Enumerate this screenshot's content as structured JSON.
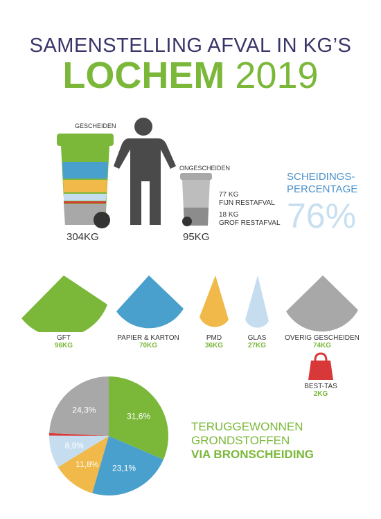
{
  "title": {
    "line1": "SAMENSTELLING AFVAL IN KG’S",
    "place": "LOCHEM",
    "year": "2019"
  },
  "bins": {
    "separated_label": "GESCHEIDEN",
    "separated_kg": "304KG",
    "unseparated_label": "ONGESCHEIDEN",
    "unseparated_kg": "95KG",
    "fine_kg": "77 KG",
    "fine_label": "FIJN RESTAFVAL",
    "coarse_kg": "18 KG",
    "coarse_label": "GROF RESTAFVAL"
  },
  "rate": {
    "label_line1": "SCHEIDINGS-",
    "label_line2": "PERCENTAGE",
    "value": "76%"
  },
  "categories": [
    {
      "name": "GFT",
      "kg": "96KG",
      "color": "#7bb83a"
    },
    {
      "name": "PAPIER & KARTON",
      "kg": "70KG",
      "color": "#4aa0cc"
    },
    {
      "name": "PMD",
      "kg": "36KG",
      "color": "#f0b94a"
    },
    {
      "name": "GLAS",
      "kg": "27KG",
      "color": "#c6ddf0"
    },
    {
      "name": "OVERIG GESCHEIDEN",
      "kg": "74KG",
      "color": "#a8a8a8"
    }
  ],
  "bag": {
    "name": "BEST-TAS",
    "kg": "2KG",
    "color": "#d93838"
  },
  "recovered": {
    "line1": "TERUGGEWONNEN",
    "line2": "GRONDSTOFFEN",
    "line3": "VIA BRONSCHEIDING"
  },
  "chart_data": {
    "type": "pie",
    "slices": [
      {
        "value": 31.6,
        "label": "31,6%",
        "color": "#7bb83a"
      },
      {
        "value": 23.1,
        "label": "23,1%",
        "color": "#4aa0cc"
      },
      {
        "value": 11.8,
        "label": "11,8%",
        "color": "#f0b94a"
      },
      {
        "value": 8.9,
        "label": "8,9%",
        "color": "#c6ddf0"
      },
      {
        "value": 0.7,
        "label": "",
        "color": "#d93838"
      },
      {
        "value": 24.3,
        "label": "24,3%",
        "color": "#a8a8a8"
      }
    ]
  }
}
